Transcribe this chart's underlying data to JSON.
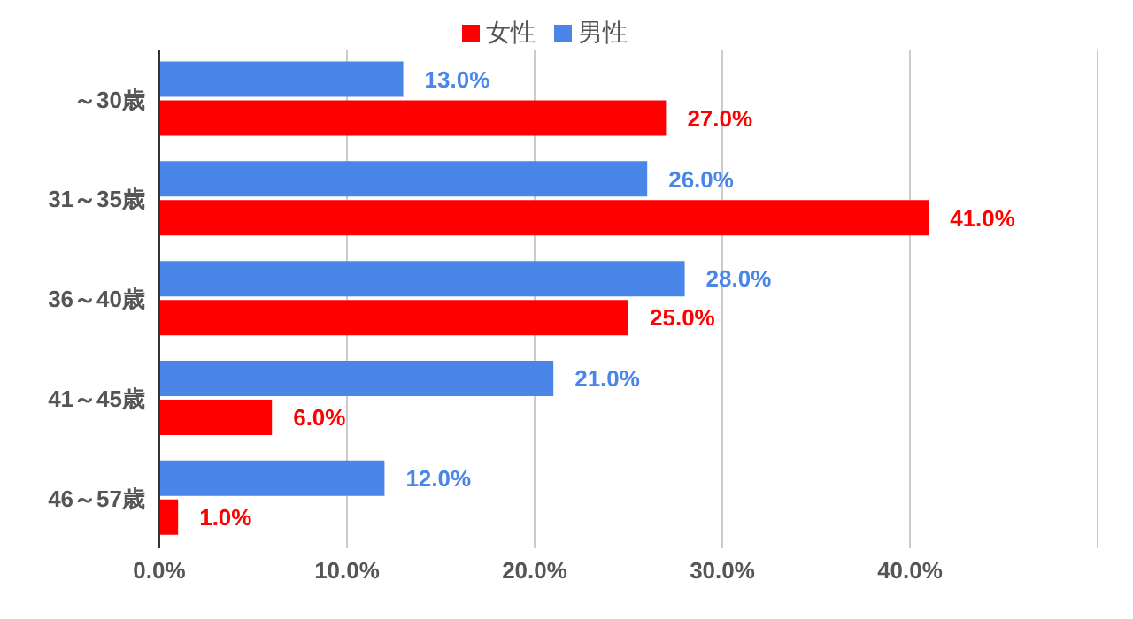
{
  "chart_data": {
    "type": "bar",
    "orientation": "horizontal",
    "categories": [
      "～30歳",
      "31～35歳",
      "36～40歳",
      "41～45歳",
      "46～57歳"
    ],
    "series": [
      {
        "name": "男性",
        "color": "#4a86e8",
        "values": [
          13,
          26,
          28,
          21,
          12
        ],
        "value_labels": [
          "13.0%",
          "26.0%",
          "28.0%",
          "21.0%",
          "12.0%"
        ]
      },
      {
        "name": "女性",
        "color": "#ff0000",
        "values": [
          27,
          41,
          25,
          6,
          1
        ],
        "value_labels": [
          "27.0%",
          "41.0%",
          "25.0%",
          "6.0%",
          "1.0%"
        ]
      }
    ],
    "xlim": [
      0,
      50
    ],
    "xticks": [
      {
        "value": 0,
        "label": "0.0%"
      },
      {
        "value": 10,
        "label": "10.0%"
      },
      {
        "value": 20,
        "label": "20.0%"
      },
      {
        "value": 30,
        "label": "30.0%"
      },
      {
        "value": 40,
        "label": "40.0%"
      },
      {
        "value": 50,
        "label": null
      }
    ],
    "grid": "x",
    "legend": "top"
  }
}
